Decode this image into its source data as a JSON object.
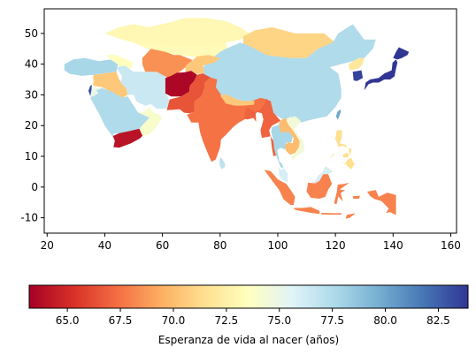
{
  "chart_data": {
    "type": "choropleth",
    "region": "Asia",
    "x_axis": {
      "range": [
        19,
        162
      ],
      "ticks": [
        20,
        40,
        60,
        80,
        100,
        120,
        140,
        160
      ]
    },
    "y_axis": {
      "range": [
        -15,
        58
      ],
      "ticks": [
        -10,
        0,
        10,
        20,
        30,
        40,
        50
      ]
    },
    "grid": false,
    "colormap": {
      "name": "RdYlBu",
      "range": [
        63.2,
        83.9
      ],
      "ticks": [
        "65.0",
        "67.5",
        "70.0",
        "72.5",
        "75.0",
        "77.5",
        "80.0",
        "82.5"
      ],
      "label": "Esperanza de vida al nacer (años)",
      "orientation": "horizontal"
    },
    "regions": [
      {
        "id": "russia-central-asia-north",
        "value": 73.0
      },
      {
        "id": "kazakhstan",
        "value": 73.2
      },
      {
        "id": "mongolia",
        "value": 71.0
      },
      {
        "id": "china",
        "value": 77.5
      },
      {
        "id": "korea-north",
        "value": 72.0
      },
      {
        "id": "korea-south",
        "value": 83.5
      },
      {
        "id": "japan",
        "value": 84.0
      },
      {
        "id": "turkey",
        "value": 77.8
      },
      {
        "id": "caucasus",
        "value": 73.5
      },
      {
        "id": "iraq-syria",
        "value": 70.5
      },
      {
        "id": "iran",
        "value": 76.5
      },
      {
        "id": "turkmenistan-uzbek",
        "value": 68.5
      },
      {
        "id": "kyrgyz-tajik",
        "value": 70.5
      },
      {
        "id": "afghanistan",
        "value": 63.5
      },
      {
        "id": "pakistan",
        "value": 66.5
      },
      {
        "id": "india",
        "value": 67.5
      },
      {
        "id": "nepal-bhutan",
        "value": 70.5
      },
      {
        "id": "bangladesh-myanmar",
        "value": 67.0
      },
      {
        "id": "thailand",
        "value": 77.8
      },
      {
        "id": "laos-cambodia",
        "value": 70.0
      },
      {
        "id": "vietnam",
        "value": 74.5
      },
      {
        "id": "malaysia",
        "value": 76.0
      },
      {
        "id": "indonesia",
        "value": 68.0
      },
      {
        "id": "philippines",
        "value": 71.5
      },
      {
        "id": "saudi-arabia",
        "value": 77.5
      },
      {
        "id": "yemen",
        "value": 64.0
      },
      {
        "id": "oman-uae",
        "value": 74.0
      },
      {
        "id": "israel",
        "value": 83.0
      },
      {
        "id": "jordan-lebanon",
        "value": 75.0
      },
      {
        "id": "sri-lanka",
        "value": 77.0
      },
      {
        "id": "taiwan",
        "value": 80.0
      },
      {
        "id": "papua-new-guinea",
        "value": 66.0
      }
    ]
  }
}
